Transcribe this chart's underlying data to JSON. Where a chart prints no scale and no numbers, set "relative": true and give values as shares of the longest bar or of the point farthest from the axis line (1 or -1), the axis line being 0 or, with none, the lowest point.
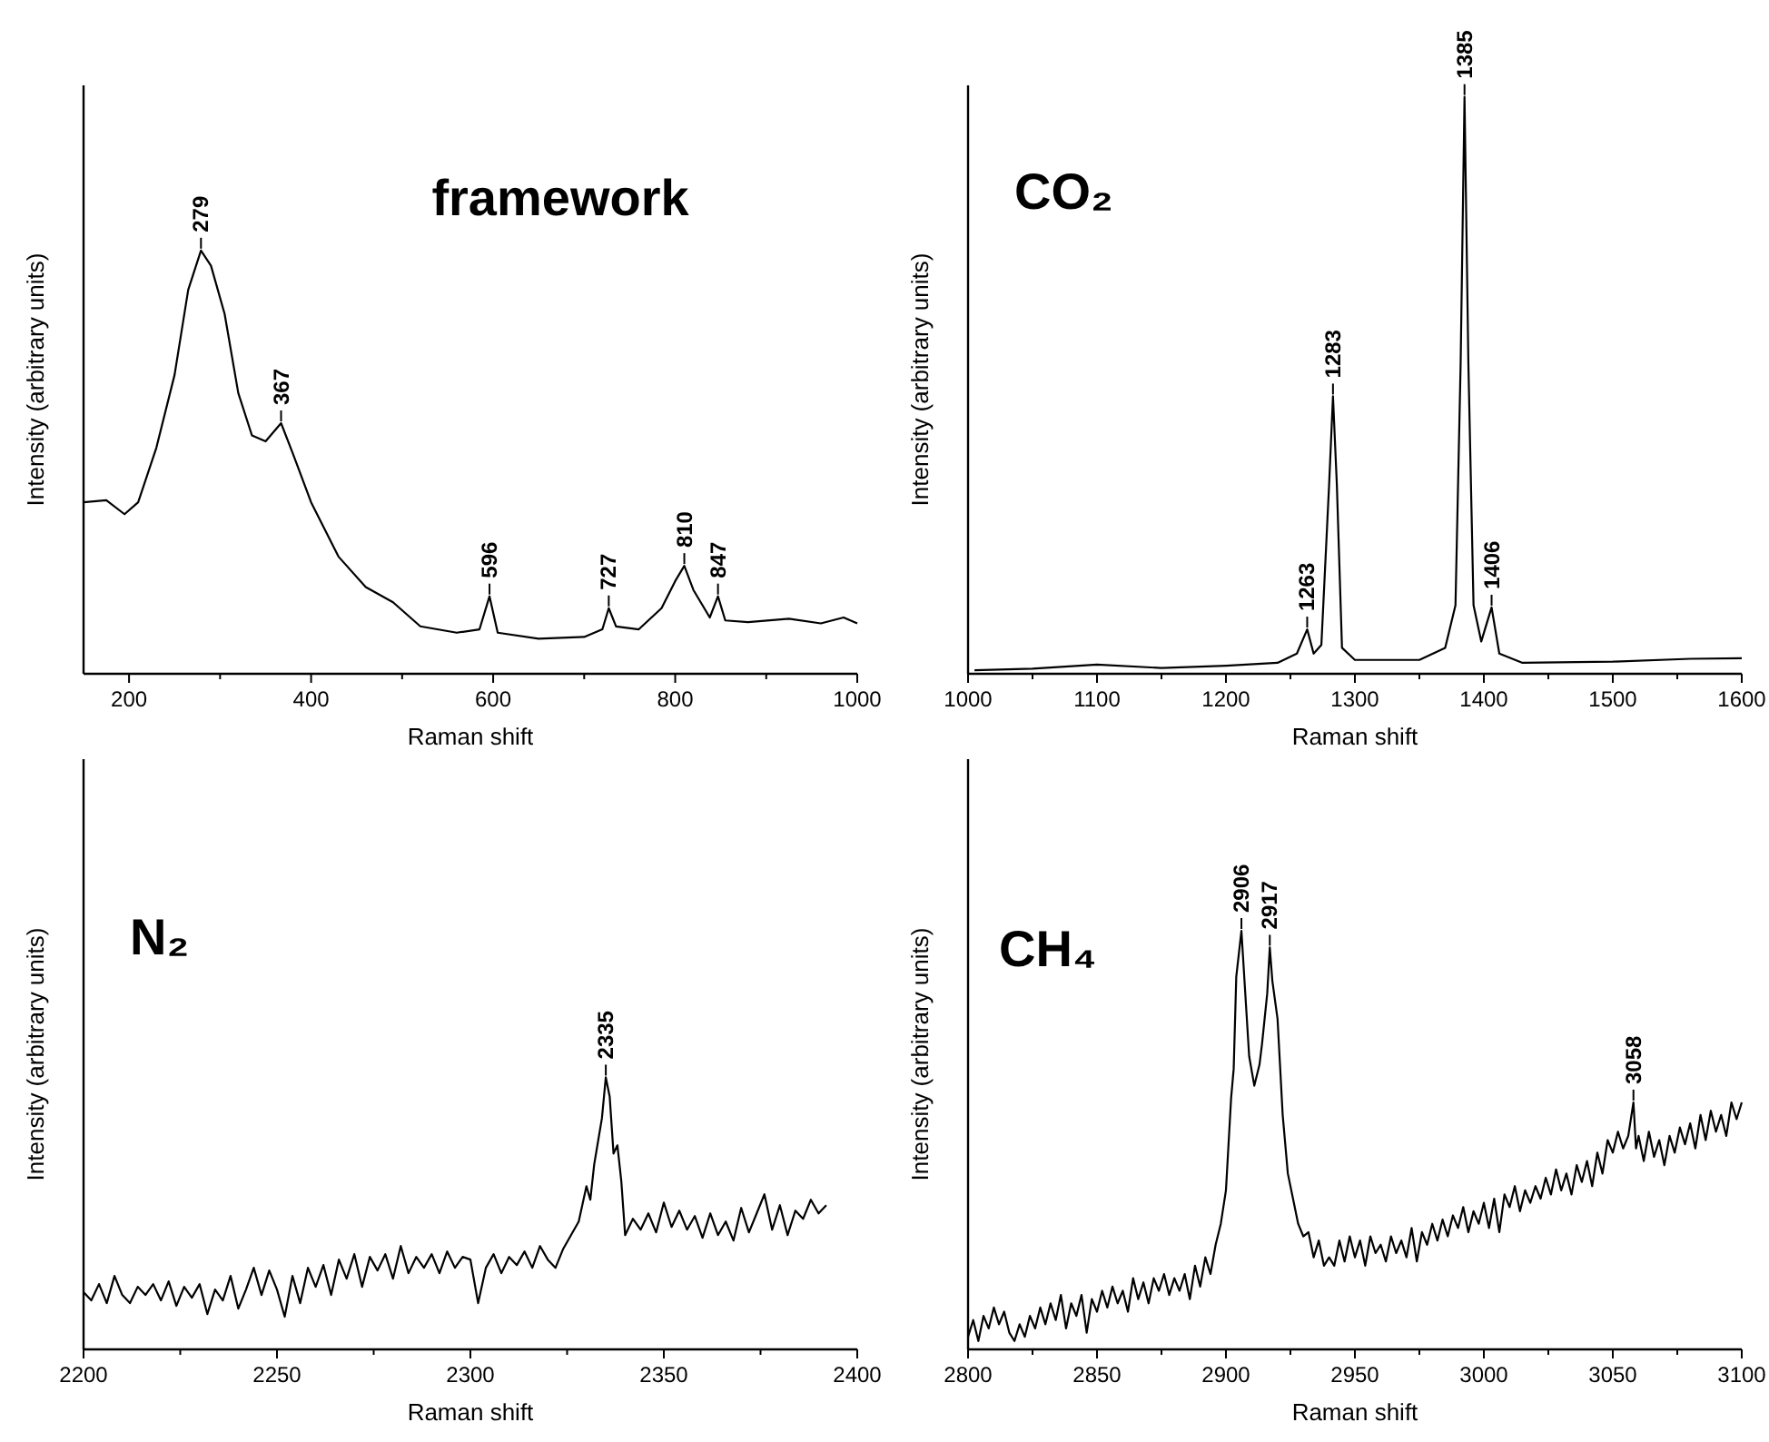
{
  "chart_data": [
    {
      "type": "line",
      "title": "framework",
      "xlabel": "Raman shift",
      "ylabel": "Intensity  (arbitrary units)",
      "relative": true,
      "color": "#000000",
      "xlim": [
        150,
        1000
      ],
      "xticks": [
        200,
        {
          "value": 300,
          "label": null
        },
        400,
        {
          "value": 500,
          "label": null
        },
        600,
        {
          "value": 700,
          "label": null
        },
        800,
        {
          "value": 900,
          "label": null
        },
        1000
      ],
      "x": [
        150,
        175,
        195,
        210,
        230,
        250,
        265,
        279,
        290,
        305,
        320,
        335,
        350,
        367,
        380,
        400,
        430,
        460,
        490,
        520,
        560,
        585,
        596,
        605,
        650,
        700,
        720,
        727,
        735,
        760,
        785,
        800,
        810,
        820,
        838,
        847,
        855,
        880,
        925,
        960,
        985,
        1000
      ],
      "values": [
        0.405,
        0.41,
        0.377,
        0.405,
        0.534,
        0.706,
        0.907,
        1.0,
        0.964,
        0.85,
        0.663,
        0.563,
        0.549,
        0.592,
        0.52,
        0.405,
        0.277,
        0.205,
        0.169,
        0.112,
        0.097,
        0.105,
        0.183,
        0.097,
        0.083,
        0.087,
        0.105,
        0.155,
        0.112,
        0.105,
        0.155,
        0.219,
        0.255,
        0.198,
        0.133,
        0.183,
        0.126,
        0.122,
        0.13,
        0.119,
        0.133,
        0.119
      ],
      "annotations": [
        {
          "text": "279",
          "x": 279,
          "y": 1.0
        },
        {
          "text": "367",
          "x": 367,
          "y": 0.592
        },
        {
          "text": "596",
          "x": 596,
          "y": 0.183
        },
        {
          "text": "727",
          "x": 727,
          "y": 0.155
        },
        {
          "text": "810",
          "x": 810,
          "y": 0.255
        },
        {
          "text": "847",
          "x": 847,
          "y": 0.183
        }
      ]
    },
    {
      "type": "line",
      "title": "CO₂",
      "xlabel": "Raman shift",
      "ylabel": "Intensity (arbitrary units)",
      "relative": true,
      "color": "#000000",
      "xlim": [
        1000,
        1600
      ],
      "xticks": [
        1000,
        {
          "value": 1050,
          "label": null
        },
        1100,
        {
          "value": 1150,
          "label": null
        },
        1200,
        {
          "value": 1250,
          "label": null
        },
        1300,
        {
          "value": 1350,
          "label": null
        },
        1400,
        {
          "value": 1450,
          "label": null
        },
        1500,
        {
          "value": 1550,
          "label": null
        },
        1600
      ],
      "x": [
        1005,
        1050,
        1100,
        1150,
        1200,
        1240,
        1255,
        1263,
        1268,
        1274,
        1280,
        1283,
        1286,
        1290,
        1300,
        1350,
        1370,
        1378,
        1382,
        1385,
        1388,
        1392,
        1398,
        1406,
        1412,
        1430,
        1500,
        1560,
        1600
      ],
      "values": [
        0.006,
        0.009,
        0.016,
        0.01,
        0.014,
        0.019,
        0.035,
        0.077,
        0.035,
        0.05,
        0.328,
        0.481,
        0.328,
        0.045,
        0.024,
        0.024,
        0.045,
        0.119,
        0.538,
        1.0,
        0.538,
        0.119,
        0.056,
        0.115,
        0.035,
        0.019,
        0.021,
        0.026,
        0.027
      ],
      "annotations": [
        {
          "text": "1263",
          "x": 1263,
          "y": 0.077
        },
        {
          "text": "1283",
          "x": 1283,
          "y": 0.481
        },
        {
          "text": "1385",
          "x": 1385,
          "y": 1.0
        },
        {
          "text": "1406",
          "x": 1406,
          "y": 0.115
        }
      ]
    },
    {
      "type": "line",
      "title": "N₂",
      "xlabel": "Raman shift",
      "ylabel": "Intensity (arbitrary units)",
      "relative": true,
      "color": "#000000",
      "xlim": [
        2200,
        2400
      ],
      "xticks": [
        2200,
        {
          "value": 2225,
          "label": null
        },
        2250,
        {
          "value": 2275,
          "label": null
        },
        2300,
        {
          "value": 2325,
          "label": null
        },
        2350,
        {
          "value": 2375,
          "label": null
        },
        2400
      ],
      "x": [
        2200,
        2202,
        2204,
        2206,
        2208,
        2210,
        2212,
        2214,
        2216,
        2218,
        2220,
        2222,
        2224,
        2226,
        2228,
        2230,
        2232,
        2234,
        2236,
        2238,
        2240,
        2242,
        2244,
        2246,
        2248,
        2250,
        2252,
        2254,
        2256,
        2258,
        2260,
        2262,
        2264,
        2266,
        2268,
        2270,
        2272,
        2274,
        2276,
        2278,
        2280,
        2282,
        2284,
        2286,
        2288,
        2290,
        2292,
        2294,
        2296,
        2298,
        2300,
        2302,
        2304,
        2306,
        2308,
        2310,
        2312,
        2314,
        2316,
        2318,
        2320,
        2322,
        2324,
        2326,
        2328,
        2330,
        2331,
        2332,
        2334,
        2335,
        2336,
        2337,
        2338,
        2339,
        2340,
        2342,
        2344,
        2346,
        2348,
        2350,
        2352,
        2354,
        2356,
        2358,
        2360,
        2362,
        2364,
        2366,
        2368,
        2370,
        2372,
        2374,
        2376,
        2378,
        2380,
        2382,
        2384,
        2386,
        2388,
        2390,
        2392
      ],
      "values": [
        0.21,
        0.18,
        0.24,
        0.17,
        0.27,
        0.2,
        0.17,
        0.23,
        0.2,
        0.24,
        0.18,
        0.25,
        0.16,
        0.23,
        0.19,
        0.24,
        0.13,
        0.22,
        0.18,
        0.27,
        0.15,
        0.22,
        0.3,
        0.2,
        0.29,
        0.22,
        0.12,
        0.27,
        0.17,
        0.3,
        0.23,
        0.31,
        0.2,
        0.33,
        0.26,
        0.35,
        0.23,
        0.34,
        0.29,
        0.35,
        0.26,
        0.38,
        0.28,
        0.34,
        0.3,
        0.35,
        0.28,
        0.36,
        0.3,
        0.34,
        0.33,
        0.17,
        0.3,
        0.35,
        0.28,
        0.34,
        0.31,
        0.36,
        0.3,
        0.38,
        0.33,
        0.3,
        0.37,
        0.42,
        0.47,
        0.6,
        0.55,
        0.68,
        0.85,
        1.0,
        0.93,
        0.72,
        0.75,
        0.62,
        0.42,
        0.48,
        0.44,
        0.5,
        0.43,
        0.54,
        0.45,
        0.51,
        0.44,
        0.49,
        0.41,
        0.5,
        0.42,
        0.47,
        0.4,
        0.52,
        0.43,
        0.5,
        0.57,
        0.44,
        0.53,
        0.42,
        0.51,
        0.48,
        0.55,
        0.5,
        0.53
      ],
      "annotations": [
        {
          "text": "2335",
          "x": 2335,
          "y": 1.0
        }
      ]
    },
    {
      "type": "line",
      "title": "CH₄",
      "xlabel": "Raman shift",
      "ylabel": "Intensity  (arbitrary units)",
      "relative": true,
      "color": "#000000",
      "xlim": [
        2800,
        3100
      ],
      "xticks": [
        2800,
        {
          "value": 2825,
          "label": null
        },
        2850,
        {
          "value": 2875,
          "label": null
        },
        2900,
        {
          "value": 2925,
          "label": null
        },
        2950,
        {
          "value": 2975,
          "label": null
        },
        3000,
        {
          "value": 3025,
          "label": null
        },
        3050,
        {
          "value": 3075,
          "label": null
        },
        3100
      ],
      "x": [
        2800,
        2802,
        2804,
        2806,
        2808,
        2810,
        2812,
        2814,
        2816,
        2818,
        2820,
        2822,
        2824,
        2826,
        2828,
        2830,
        2832,
        2834,
        2836,
        2838,
        2840,
        2842,
        2844,
        2846,
        2848,
        2850,
        2852,
        2854,
        2856,
        2858,
        2860,
        2862,
        2864,
        2866,
        2868,
        2870,
        2872,
        2874,
        2876,
        2878,
        2880,
        2882,
        2884,
        2886,
        2888,
        2890,
        2892,
        2894,
        2896,
        2898,
        2900,
        2902,
        2903,
        2904,
        2906,
        2908,
        2909,
        2911,
        2913,
        2914,
        2916,
        2917,
        2918,
        2920,
        2922,
        2924,
        2926,
        2928,
        2930,
        2932,
        2934,
        2936,
        2938,
        2940,
        2942,
        2944,
        2946,
        2948,
        2950,
        2952,
        2954,
        2956,
        2958,
        2960,
        2962,
        2964,
        2966,
        2968,
        2970,
        2972,
        2974,
        2976,
        2978,
        2980,
        2982,
        2984,
        2986,
        2988,
        2990,
        2992,
        2994,
        2996,
        2998,
        3000,
        3002,
        3004,
        3006,
        3008,
        3010,
        3012,
        3014,
        3016,
        3018,
        3020,
        3022,
        3024,
        3026,
        3028,
        3030,
        3032,
        3034,
        3036,
        3038,
        3040,
        3042,
        3044,
        3046,
        3048,
        3050,
        3052,
        3054,
        3056,
        3058,
        3059,
        3060,
        3062,
        3064,
        3066,
        3068,
        3070,
        3072,
        3074,
        3076,
        3078,
        3080,
        3082,
        3084,
        3086,
        3088,
        3090,
        3092,
        3094,
        3096,
        3098,
        3100
      ],
      "values": [
        0.03,
        0.07,
        0.02,
        0.08,
        0.05,
        0.1,
        0.06,
        0.09,
        0.04,
        0.02,
        0.06,
        0.03,
        0.08,
        0.05,
        0.1,
        0.06,
        0.11,
        0.07,
        0.13,
        0.05,
        0.11,
        0.08,
        0.13,
        0.04,
        0.12,
        0.09,
        0.14,
        0.1,
        0.15,
        0.11,
        0.14,
        0.09,
        0.17,
        0.12,
        0.16,
        0.11,
        0.17,
        0.14,
        0.18,
        0.13,
        0.17,
        0.14,
        0.18,
        0.12,
        0.2,
        0.15,
        0.22,
        0.18,
        0.25,
        0.3,
        0.38,
        0.6,
        0.67,
        0.89,
        1.0,
        0.8,
        0.7,
        0.63,
        0.68,
        0.73,
        0.85,
        0.96,
        0.88,
        0.79,
        0.56,
        0.42,
        0.36,
        0.3,
        0.27,
        0.28,
        0.22,
        0.26,
        0.2,
        0.22,
        0.2,
        0.26,
        0.21,
        0.27,
        0.22,
        0.26,
        0.2,
        0.27,
        0.23,
        0.25,
        0.21,
        0.27,
        0.23,
        0.26,
        0.22,
        0.29,
        0.21,
        0.28,
        0.25,
        0.3,
        0.26,
        0.31,
        0.27,
        0.32,
        0.29,
        0.34,
        0.28,
        0.33,
        0.3,
        0.35,
        0.29,
        0.36,
        0.28,
        0.37,
        0.34,
        0.39,
        0.33,
        0.38,
        0.35,
        0.39,
        0.36,
        0.41,
        0.37,
        0.43,
        0.38,
        0.42,
        0.37,
        0.44,
        0.4,
        0.45,
        0.39,
        0.47,
        0.42,
        0.5,
        0.47,
        0.52,
        0.48,
        0.51,
        0.59,
        0.48,
        0.51,
        0.45,
        0.52,
        0.46,
        0.5,
        0.44,
        0.51,
        0.47,
        0.53,
        0.49,
        0.54,
        0.48,
        0.56,
        0.5,
        0.57,
        0.52,
        0.56,
        0.51,
        0.59,
        0.55,
        0.59
      ],
      "annotations": [
        {
          "text": "2906",
          "x": 2906,
          "y": 1.0
        },
        {
          "text": "2917",
          "x": 2917,
          "y": 0.96
        },
        {
          "text": "3058",
          "x": 3058,
          "y": 0.59
        }
      ]
    }
  ]
}
